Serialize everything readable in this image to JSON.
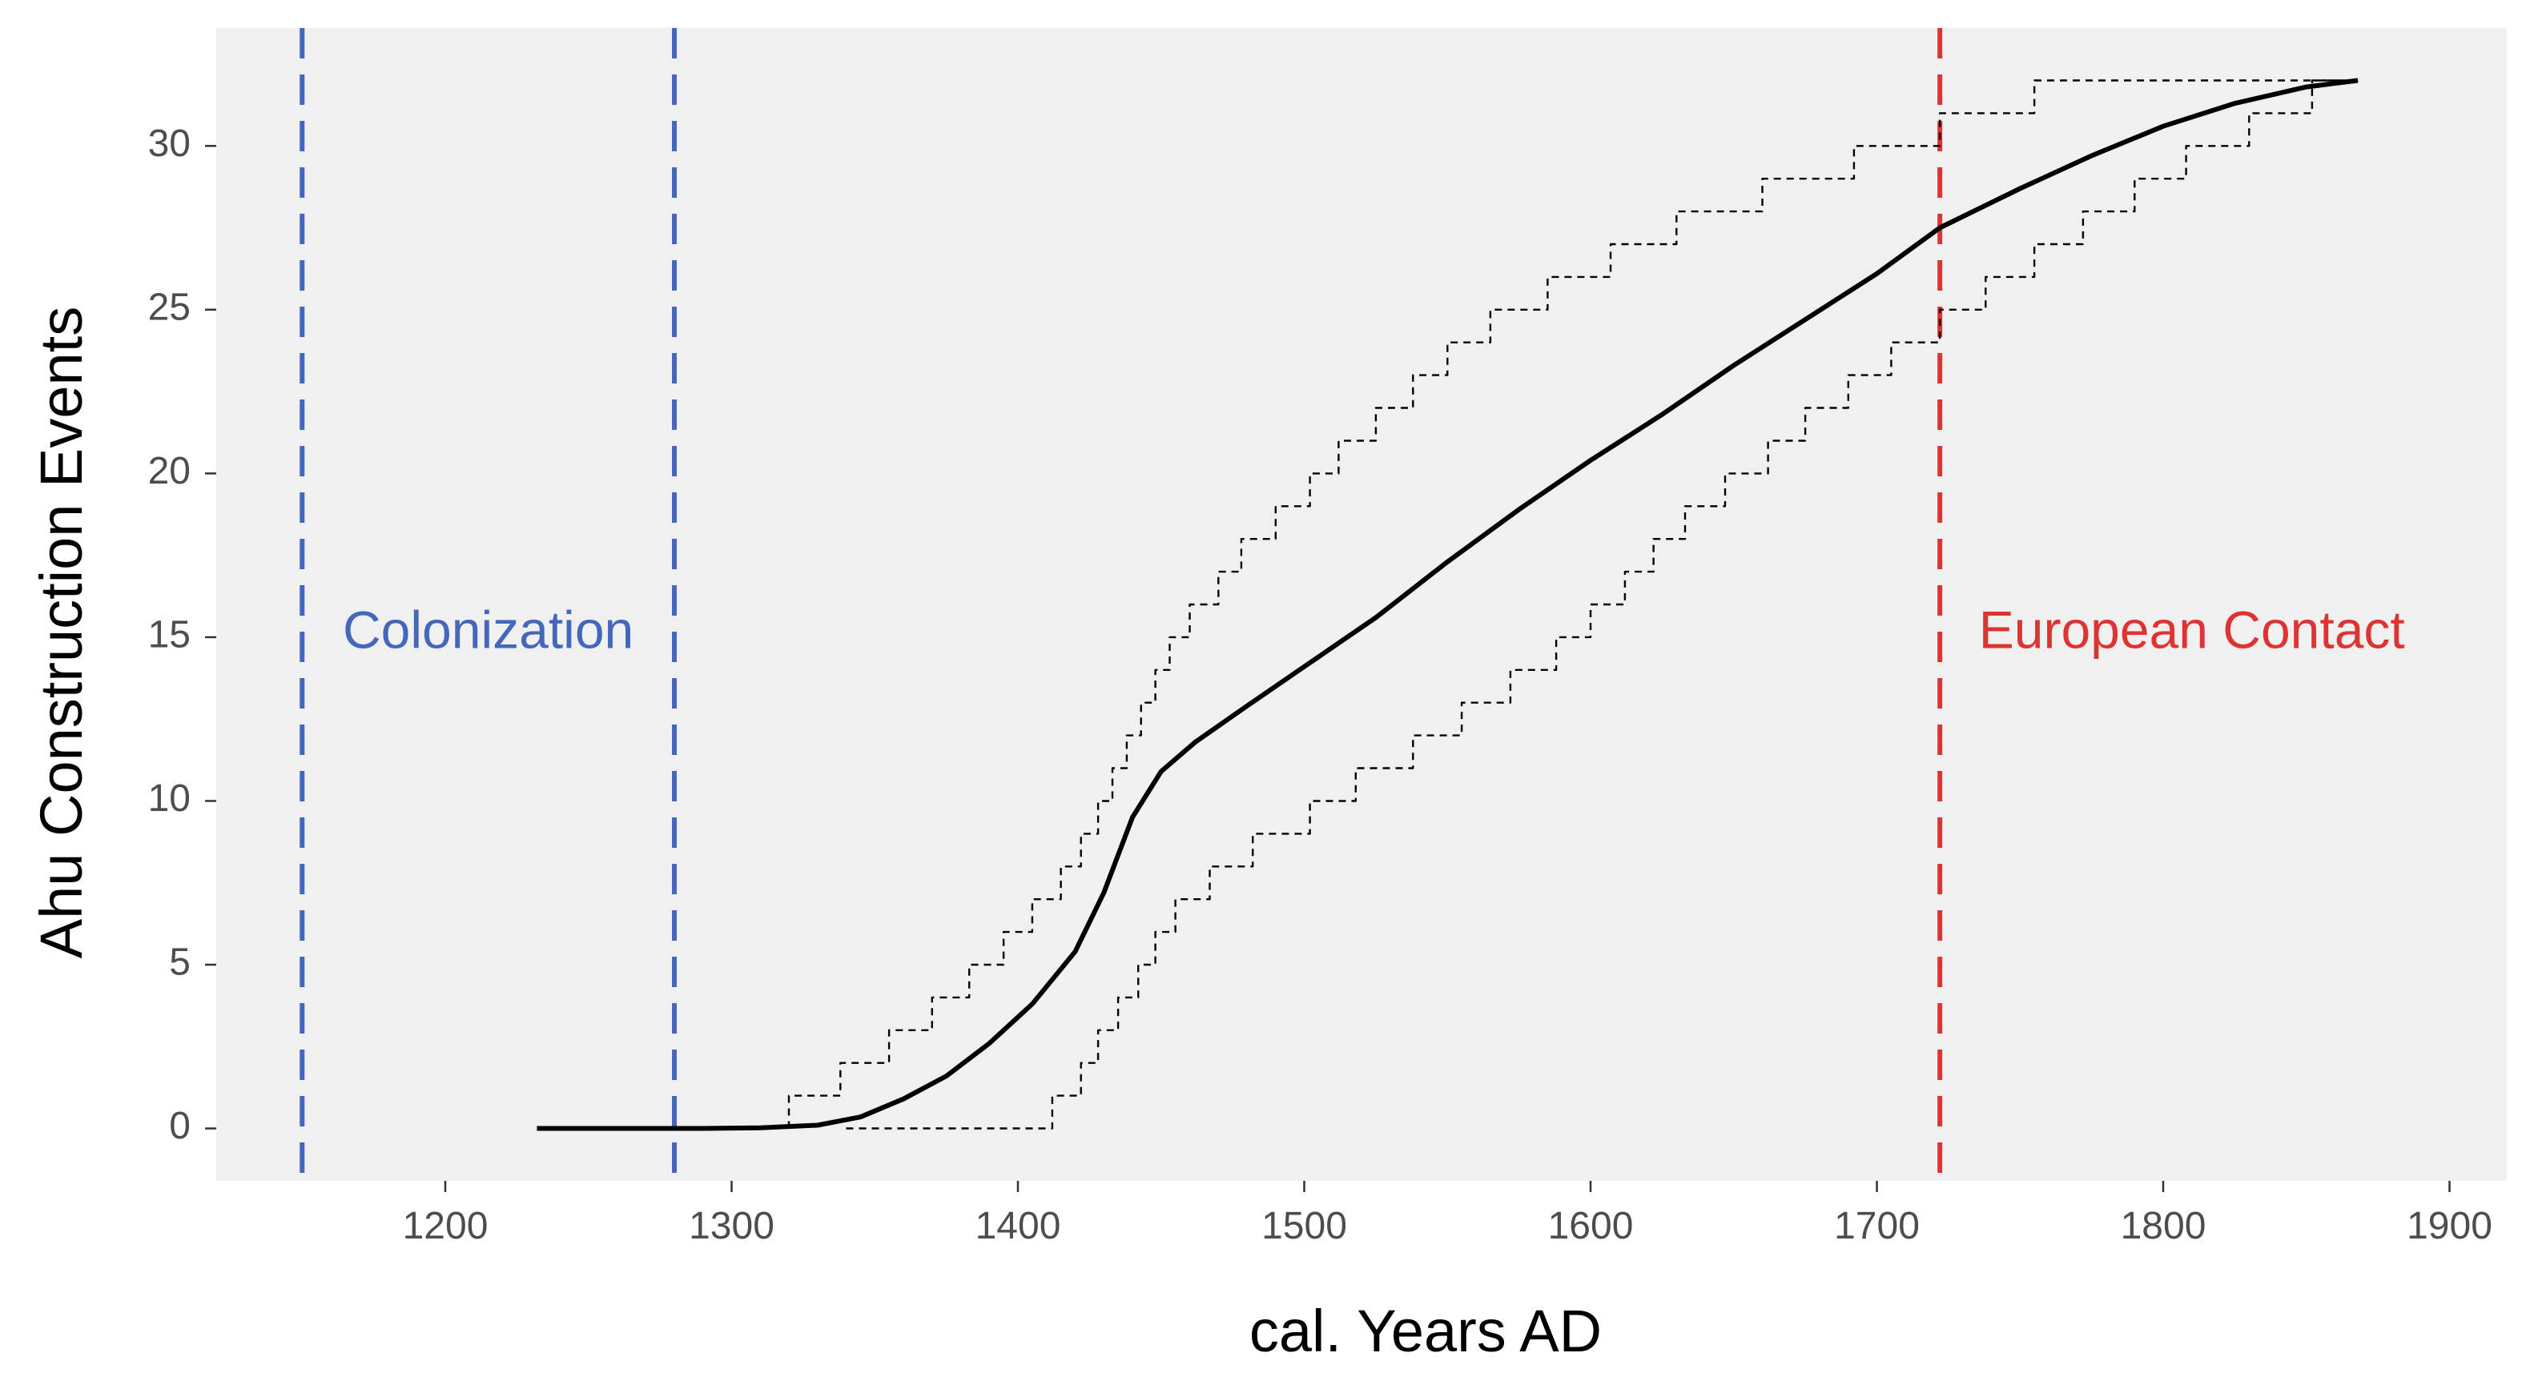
{
  "chart_data": {
    "type": "line",
    "title": "",
    "xlabel": "cal. Years AD",
    "ylabel": "Ahu Construction Events",
    "xlim": [
      1120,
      1920
    ],
    "ylim": [
      -1.6,
      33.6
    ],
    "grid": false,
    "legend": "none",
    "background_color": "#f0f0f0",
    "x_ticks": [
      1200,
      1300,
      1400,
      1500,
      1600,
      1700,
      1800,
      1900
    ],
    "y_ticks": [
      0,
      5,
      10,
      15,
      20,
      25,
      30
    ],
    "series": [
      {
        "style": "solid",
        "color": "#000000",
        "points": [
          [
            1232,
            0
          ],
          [
            1260,
            0
          ],
          [
            1290,
            0
          ],
          [
            1310,
            0.02
          ],
          [
            1330,
            0.1
          ],
          [
            1345,
            0.35
          ],
          [
            1360,
            0.9
          ],
          [
            1375,
            1.6
          ],
          [
            1390,
            2.6
          ],
          [
            1405,
            3.8
          ],
          [
            1420,
            5.4
          ],
          [
            1430,
            7.2
          ],
          [
            1440,
            9.5
          ],
          [
            1450,
            10.9
          ],
          [
            1462,
            11.8
          ],
          [
            1480,
            12.9
          ],
          [
            1500,
            14.1
          ],
          [
            1525,
            15.6
          ],
          [
            1550,
            17.3
          ],
          [
            1575,
            18.9
          ],
          [
            1600,
            20.4
          ],
          [
            1625,
            21.8
          ],
          [
            1650,
            23.3
          ],
          [
            1675,
            24.7
          ],
          [
            1700,
            26.1
          ],
          [
            1722,
            27.5
          ],
          [
            1750,
            28.7
          ],
          [
            1775,
            29.7
          ],
          [
            1800,
            30.6
          ],
          [
            1825,
            31.3
          ],
          [
            1850,
            31.8
          ],
          [
            1868,
            32
          ]
        ]
      },
      {
        "style": "dashed-step",
        "color": "#000000",
        "points": [
          [
            1320,
            0
          ],
          [
            1320,
            1
          ],
          [
            1338,
            1
          ],
          [
            1338,
            2
          ],
          [
            1355,
            2
          ],
          [
            1355,
            3
          ],
          [
            1370,
            3
          ],
          [
            1370,
            4
          ],
          [
            1383,
            4
          ],
          [
            1383,
            5
          ],
          [
            1395,
            5
          ],
          [
            1395,
            6
          ],
          [
            1405,
            6
          ],
          [
            1405,
            7
          ],
          [
            1415,
            7
          ],
          [
            1415,
            8
          ],
          [
            1422,
            8
          ],
          [
            1422,
            9
          ],
          [
            1428,
            9
          ],
          [
            1428,
            10
          ],
          [
            1433,
            10
          ],
          [
            1433,
            11
          ],
          [
            1438,
            11
          ],
          [
            1438,
            12
          ],
          [
            1443,
            12
          ],
          [
            1443,
            13
          ],
          [
            1448,
            13
          ],
          [
            1448,
            14
          ],
          [
            1453,
            14
          ],
          [
            1453,
            15
          ],
          [
            1460,
            15
          ],
          [
            1460,
            16
          ],
          [
            1470,
            16
          ],
          [
            1470,
            17
          ],
          [
            1478,
            17
          ],
          [
            1478,
            18
          ],
          [
            1490,
            18
          ],
          [
            1490,
            19
          ],
          [
            1502,
            19
          ],
          [
            1502,
            20
          ],
          [
            1512,
            20
          ],
          [
            1512,
            21
          ],
          [
            1525,
            21
          ],
          [
            1525,
            22
          ],
          [
            1538,
            22
          ],
          [
            1538,
            23
          ],
          [
            1550,
            23
          ],
          [
            1550,
            24
          ],
          [
            1565,
            24
          ],
          [
            1565,
            25
          ],
          [
            1585,
            25
          ],
          [
            1585,
            26
          ],
          [
            1607,
            26
          ],
          [
            1607,
            27
          ],
          [
            1630,
            27
          ],
          [
            1630,
            28
          ],
          [
            1660,
            28
          ],
          [
            1660,
            29
          ],
          [
            1692,
            29
          ],
          [
            1692,
            30
          ],
          [
            1722,
            30
          ],
          [
            1722,
            31
          ],
          [
            1755,
            31
          ],
          [
            1755,
            32
          ],
          [
            1868,
            32
          ]
        ]
      },
      {
        "style": "dashed-step",
        "color": "#000000",
        "points": [
          [
            1340,
            0
          ],
          [
            1412,
            0
          ],
          [
            1412,
            1
          ],
          [
            1422,
            1
          ],
          [
            1422,
            2
          ],
          [
            1428,
            2
          ],
          [
            1428,
            3
          ],
          [
            1435,
            3
          ],
          [
            1435,
            4
          ],
          [
            1442,
            4
          ],
          [
            1442,
            5
          ],
          [
            1448,
            5
          ],
          [
            1448,
            6
          ],
          [
            1455,
            6
          ],
          [
            1455,
            7
          ],
          [
            1467,
            7
          ],
          [
            1467,
            8
          ],
          [
            1482,
            8
          ],
          [
            1482,
            9
          ],
          [
            1502,
            9
          ],
          [
            1502,
            10
          ],
          [
            1518,
            10
          ],
          [
            1518,
            11
          ],
          [
            1538,
            11
          ],
          [
            1538,
            12
          ],
          [
            1555,
            12
          ],
          [
            1555,
            13
          ],
          [
            1572,
            13
          ],
          [
            1572,
            14
          ],
          [
            1588,
            14
          ],
          [
            1588,
            15
          ],
          [
            1600,
            15
          ],
          [
            1600,
            16
          ],
          [
            1612,
            16
          ],
          [
            1612,
            17
          ],
          [
            1622,
            17
          ],
          [
            1622,
            18
          ],
          [
            1633,
            18
          ],
          [
            1633,
            19
          ],
          [
            1647,
            19
          ],
          [
            1647,
            20
          ],
          [
            1662,
            20
          ],
          [
            1662,
            21
          ],
          [
            1675,
            21
          ],
          [
            1675,
            22
          ],
          [
            1690,
            22
          ],
          [
            1690,
            23
          ],
          [
            1705,
            23
          ],
          [
            1705,
            24
          ],
          [
            1722,
            24
          ],
          [
            1722,
            25
          ],
          [
            1738,
            25
          ],
          [
            1738,
            26
          ],
          [
            1755,
            26
          ],
          [
            1755,
            27
          ],
          [
            1772,
            27
          ],
          [
            1772,
            28
          ],
          [
            1790,
            28
          ],
          [
            1790,
            29
          ],
          [
            1808,
            29
          ],
          [
            1808,
            30
          ],
          [
            1830,
            30
          ],
          [
            1830,
            31
          ],
          [
            1852,
            31
          ],
          [
            1852,
            32
          ],
          [
            1868,
            32
          ]
        ]
      }
    ],
    "vlines": [
      {
        "x": 1150,
        "color": "#4466bb",
        "style": "dashed"
      },
      {
        "x": 1280,
        "color": "#4466bb",
        "style": "dashed"
      },
      {
        "x": 1722,
        "color": "#dd3333",
        "style": "dashed"
      }
    ],
    "annotations": [
      {
        "text": "Colonization",
        "x": 1215,
        "y": 15.1,
        "color": "#4466bb"
      },
      {
        "text": "European Contact",
        "x": 1810,
        "y": 15.1,
        "color": "#dd3333"
      }
    ]
  }
}
